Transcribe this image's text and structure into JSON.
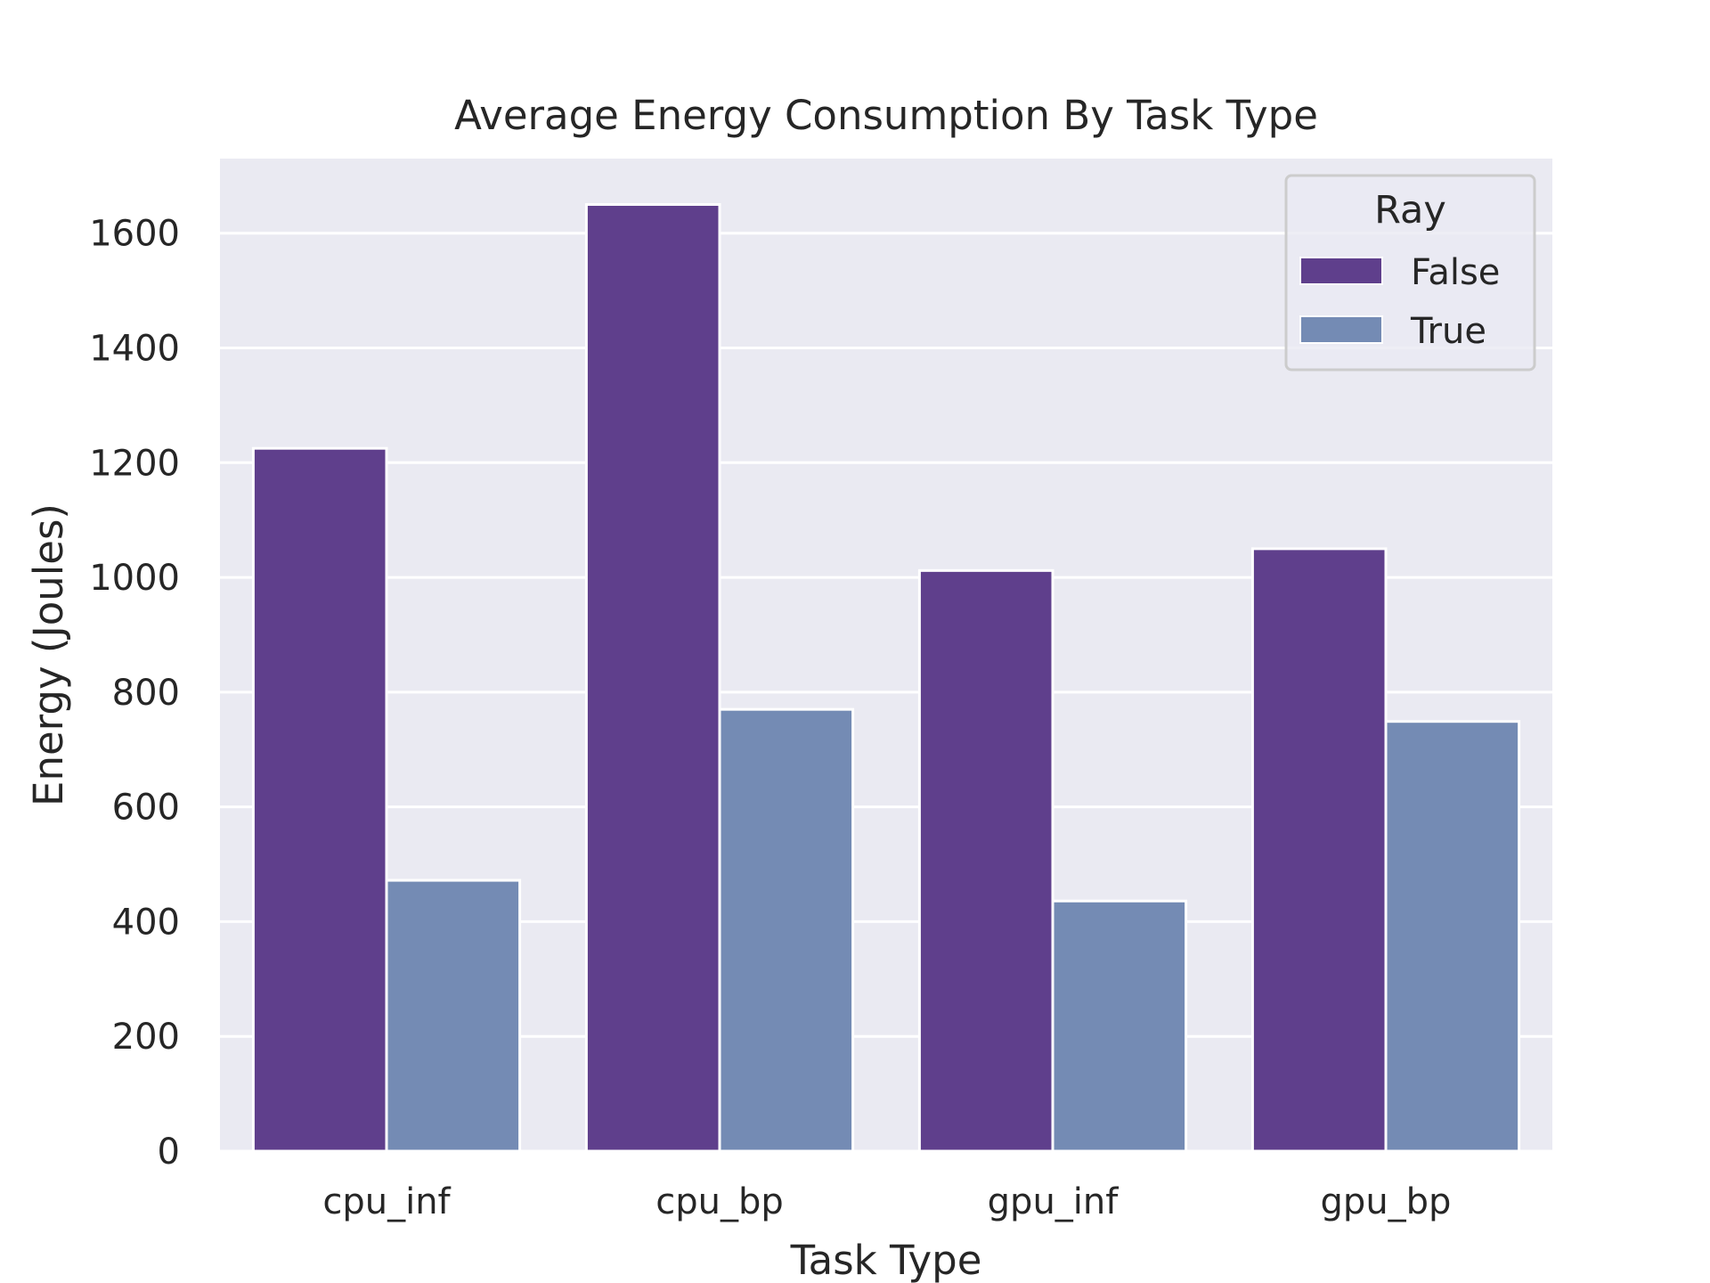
{
  "chart_data": {
    "type": "bar",
    "title": "Average Energy Consumption By Task Type",
    "xlabel": "Task Type",
    "ylabel": "Energy (Joules)",
    "categories": [
      "cpu_inf",
      "cpu_bp",
      "gpu_inf",
      "gpu_bp"
    ],
    "series": [
      {
        "name": "False",
        "values": [
          1225,
          1650,
          1012,
          1050
        ],
        "color": "#5f3f8c"
      },
      {
        "name": "True",
        "values": [
          472,
          770,
          436,
          749
        ],
        "color": "#748bb4"
      }
    ],
    "ylim": [
      0,
      1730
    ],
    "yticks": [
      0,
      200,
      400,
      600,
      800,
      1000,
      1200,
      1400,
      1600
    ],
    "legend": {
      "title": "Ray",
      "position": "top-right"
    },
    "grid": true,
    "background_color": "#eaeaf2",
    "grid_color": "#ffffff"
  }
}
